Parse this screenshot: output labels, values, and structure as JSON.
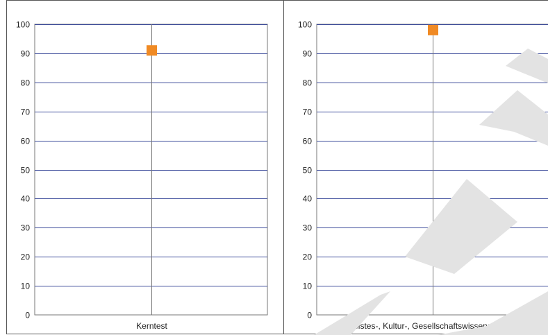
{
  "colors": {
    "grid": "#3b4a9a",
    "axis_frame": "#777777",
    "marker": "#f08a24",
    "watermark": "#e3e3e3"
  },
  "chart_data": [
    {
      "type": "scatter",
      "categories": [
        "Kerntest"
      ],
      "values": [
        91
      ],
      "ylim": [
        0,
        100
      ],
      "yticks": [
        "0",
        "10",
        "20",
        "30",
        "40",
        "50",
        "60",
        "70",
        "80",
        "90",
        "100"
      ],
      "grid": true,
      "marker": "square"
    },
    {
      "type": "scatter",
      "categories": [
        "Geistes-, Kultur-, Gesellschaftswissenschaften"
      ],
      "values": [
        98
      ],
      "ylim": [
        0,
        100
      ],
      "yticks": [
        "0",
        "10",
        "20",
        "30",
        "40",
        "50",
        "60",
        "70",
        "80",
        "90",
        "100"
      ],
      "grid": true,
      "marker": "square"
    }
  ]
}
